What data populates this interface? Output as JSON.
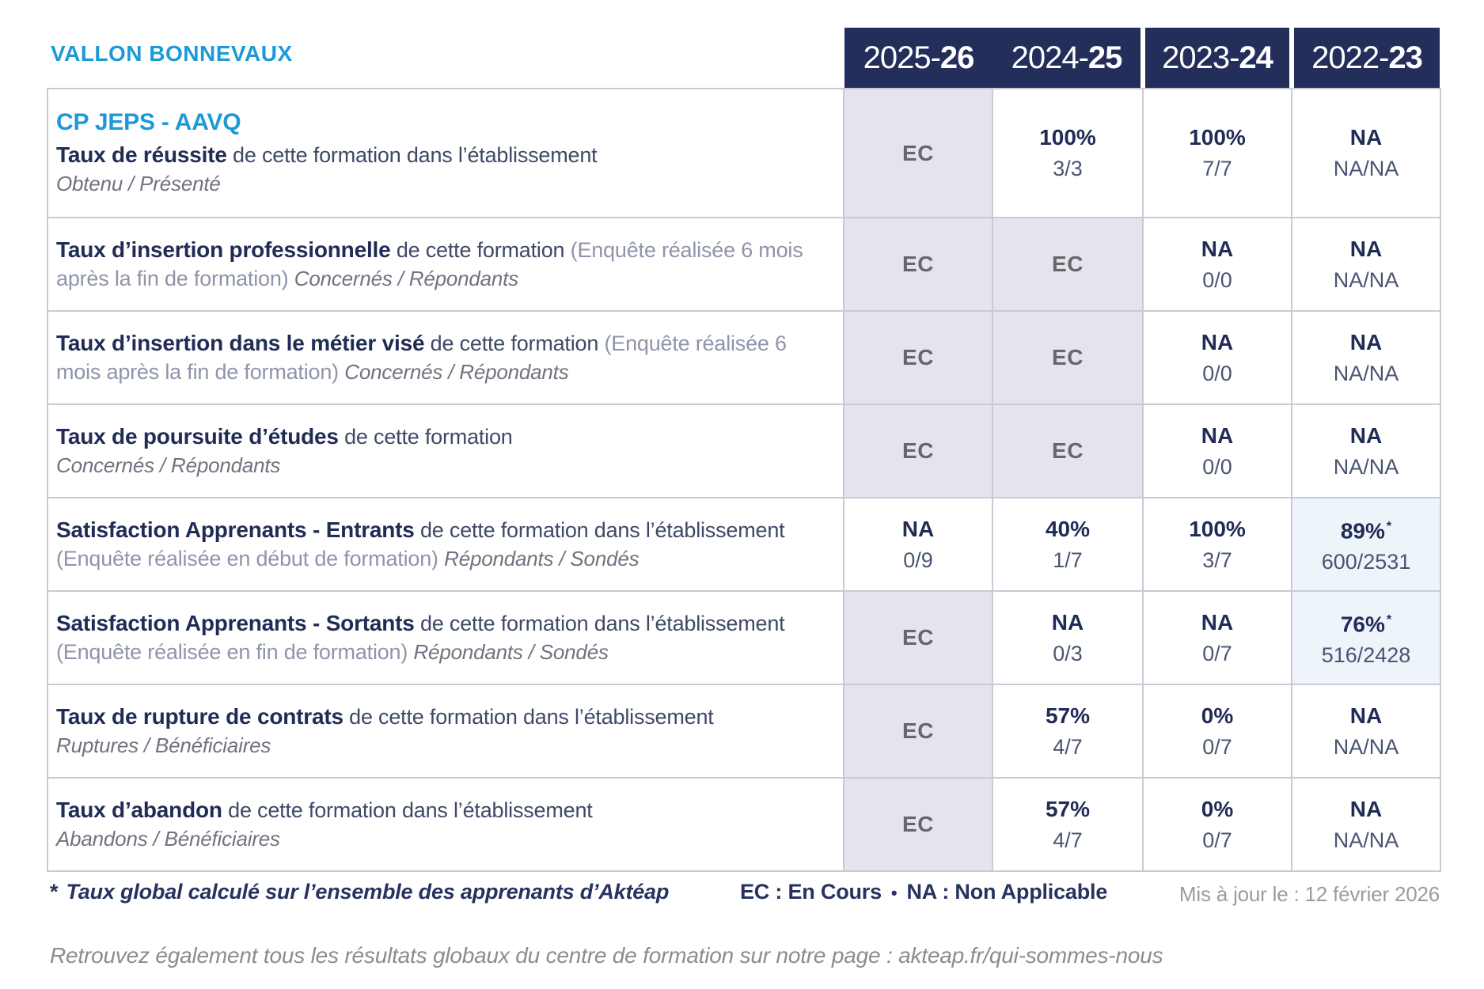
{
  "brand": {
    "site_name": "VALLON BONNEVAUX",
    "accent_blue": "#1b9ad7",
    "navy": "#242e5b",
    "ec_bg": "#e4e3ee",
    "highlight_bg": "#edf4fa"
  },
  "header": {
    "columns": [
      {
        "start": "2025-",
        "end": "26"
      },
      {
        "start": "2024-",
        "end": "25"
      },
      {
        "start": "2023-",
        "end": "24"
      },
      {
        "start": "2022-",
        "end": "23"
      }
    ]
  },
  "table": {
    "program": "CP JEPS - AAVQ",
    "rows": [
      {
        "title": "Taux de réussite",
        "desc": "de cette formation dans l’établissement",
        "paren": "",
        "sub": "Obtenu / Présenté",
        "cells": [
          {
            "main": "EC",
            "frac": ""
          },
          {
            "main": "100%",
            "frac": "3/3"
          },
          {
            "main": "100%",
            "frac": "7/7"
          },
          {
            "main": "NA",
            "frac": "NA/NA"
          }
        ]
      },
      {
        "title": "Taux d’insertion professionnelle",
        "desc": "de cette formation",
        "paren": "(Enquête réalisée 6 mois après la fin de formation)",
        "sub": "Concernés / Répondants",
        "cells": [
          {
            "main": "EC",
            "frac": ""
          },
          {
            "main": "EC",
            "frac": ""
          },
          {
            "main": "NA",
            "frac": "0/0"
          },
          {
            "main": "NA",
            "frac": "NA/NA"
          }
        ]
      },
      {
        "title": "Taux d’insertion dans le métier visé",
        "desc": "de cette formation",
        "paren": "(Enquête réalisée 6 mois après la fin de formation)",
        "sub": "Concernés / Répondants",
        "cells": [
          {
            "main": "EC",
            "frac": ""
          },
          {
            "main": "EC",
            "frac": ""
          },
          {
            "main": "NA",
            "frac": "0/0"
          },
          {
            "main": "NA",
            "frac": "NA/NA"
          }
        ]
      },
      {
        "title": "Taux de poursuite d’études",
        "desc": "de cette formation",
        "paren": "",
        "sub": "Concernés / Répondants",
        "cells": [
          {
            "main": "EC",
            "frac": ""
          },
          {
            "main": "EC",
            "frac": ""
          },
          {
            "main": "NA",
            "frac": "0/0"
          },
          {
            "main": "NA",
            "frac": "NA/NA"
          }
        ]
      },
      {
        "title": "Satisfaction Apprenants - Entrants",
        "desc": "de cette formation dans l’établissement",
        "paren": "(Enquête réalisée en début de formation)",
        "sub": "Répondants / Sondés",
        "cells": [
          {
            "main": "NA",
            "frac": "0/9"
          },
          {
            "main": "40%",
            "frac": "1/7"
          },
          {
            "main": "100%",
            "frac": "3/7"
          },
          {
            "main": "89%",
            "star": "*",
            "frac": "600/2531"
          }
        ]
      },
      {
        "title": "Satisfaction Apprenants - Sortants",
        "desc": "de cette formation dans l’établissement",
        "paren": "(Enquête réalisée en fin de formation)",
        "sub": "Répondants / Sondés",
        "cells": [
          {
            "main": "EC",
            "frac": ""
          },
          {
            "main": "NA",
            "frac": "0/3"
          },
          {
            "main": "NA",
            "frac": "0/7"
          },
          {
            "main": "76%",
            "star": "*",
            "frac": "516/2428"
          }
        ]
      },
      {
        "title": "Taux de rupture de contrats",
        "desc": "de cette formation dans l’établissement",
        "paren": "",
        "sub": "Ruptures / Bénéficiaires",
        "cells": [
          {
            "main": "EC",
            "frac": ""
          },
          {
            "main": "57%",
            "frac": "4/7"
          },
          {
            "main": "0%",
            "frac": "0/7"
          },
          {
            "main": "NA",
            "frac": "NA/NA"
          }
        ]
      },
      {
        "title": "Taux d’abandon",
        "desc": "de cette formation dans l’établissement",
        "paren": "",
        "sub": "Abandons / Bénéficiaires",
        "cells": [
          {
            "main": "EC",
            "frac": ""
          },
          {
            "main": "57%",
            "frac": "4/7"
          },
          {
            "main": "0%",
            "frac": "0/7"
          },
          {
            "main": "NA",
            "frac": "NA/NA"
          }
        ]
      }
    ]
  },
  "footer": {
    "asterisk": "*",
    "note": "Taux global calculé sur l’ensemble des apprenants d’Aktéap",
    "legend_ec": "EC : En Cours",
    "legend_sep": "•",
    "legend_na": "NA : Non Applicable",
    "updated": "Mis à jour le : 12 février 2026",
    "bottom_line": "Retrouvez également tous les résultats globaux du centre de formation sur notre page : akteap.fr/qui-sommes-nous"
  }
}
